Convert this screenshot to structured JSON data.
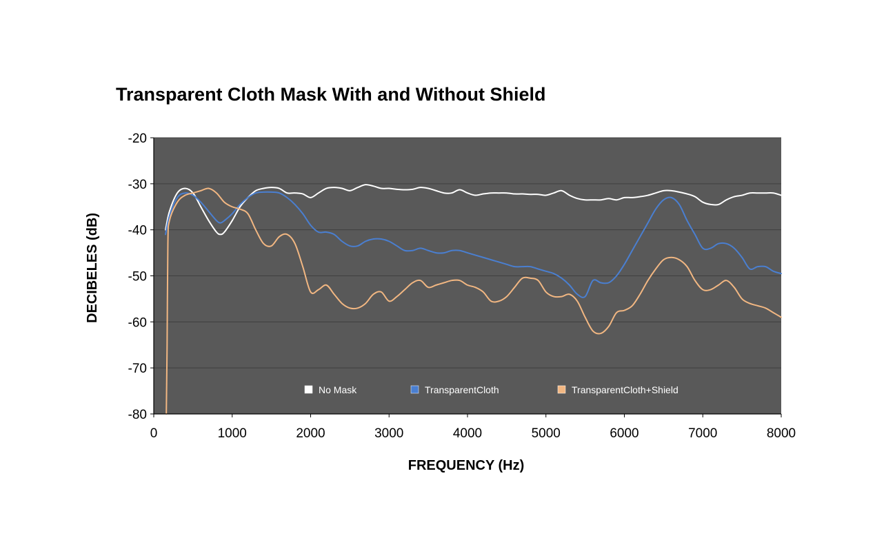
{
  "chart_data": {
    "type": "line",
    "title": "Transparent Cloth Mask With and Without Shield",
    "xlabel": "FREQUENCY (Hz)",
    "ylabel": "DECIBELES (dB)",
    "xlim": [
      0,
      8000
    ],
    "ylim": [
      -80,
      -20
    ],
    "xticks": [
      0,
      1000,
      2000,
      3000,
      4000,
      5000,
      6000,
      7000,
      8000
    ],
    "yticks": [
      -20,
      -30,
      -40,
      -50,
      -60,
      -70,
      -80
    ],
    "grid": true,
    "legend_position": "bottom-inside",
    "plot_background": "#595959",
    "series": [
      {
        "name": "No Mask",
        "color": "#ffffff",
        "x": [
          150,
          200,
          300,
          400,
          500,
          600,
          700,
          800,
          850,
          900,
          1000,
          1100,
          1200,
          1300,
          1400,
          1500,
          1600,
          1700,
          1800,
          1900,
          2000,
          2100,
          2200,
          2300,
          2400,
          2500,
          2600,
          2700,
          2800,
          2900,
          3000,
          3100,
          3200,
          3300,
          3400,
          3500,
          3600,
          3700,
          3800,
          3900,
          4000,
          4100,
          4200,
          4300,
          4400,
          4500,
          4600,
          4700,
          4800,
          4900,
          5000,
          5100,
          5200,
          5300,
          5400,
          5500,
          5600,
          5700,
          5800,
          5900,
          6000,
          6100,
          6200,
          6300,
          6400,
          6500,
          6600,
          6700,
          6800,
          6900,
          7000,
          7100,
          7200,
          7300,
          7400,
          7500,
          7600,
          7700,
          7800,
          7900,
          8000
        ],
        "values": [
          -40,
          -36,
          -32,
          -31,
          -32,
          -35,
          -38,
          -40.5,
          -41,
          -40.5,
          -38,
          -35,
          -33,
          -31.5,
          -31,
          -30.8,
          -31,
          -32,
          -32,
          -32.2,
          -33,
          -32,
          -31,
          -30.8,
          -31,
          -31.5,
          -30.8,
          -30.2,
          -30.5,
          -31,
          -31,
          -31.2,
          -31.3,
          -31.2,
          -30.8,
          -31,
          -31.5,
          -32,
          -32,
          -31.3,
          -32,
          -32.5,
          -32.2,
          -32,
          -32,
          -32,
          -32.2,
          -32.2,
          -32.3,
          -32.3,
          -32.5,
          -32,
          -31.5,
          -32.5,
          -33.2,
          -33.5,
          -33.5,
          -33.5,
          -33.2,
          -33.5,
          -33,
          -33,
          -32.8,
          -32.5,
          -32,
          -31.5,
          -31.5,
          -31.8,
          -32.2,
          -32.8,
          -34,
          -34.5,
          -34.5,
          -33.5,
          -32.8,
          -32.5,
          -32,
          -32,
          -32,
          -32,
          -32.5
        ]
      },
      {
        "name": "TransparentCloth",
        "color": "#4a7fd1",
        "x": [
          150,
          200,
          300,
          400,
          500,
          600,
          700,
          800,
          850,
          900,
          1000,
          1100,
          1200,
          1300,
          1400,
          1500,
          1600,
          1700,
          1800,
          1900,
          2000,
          2100,
          2200,
          2300,
          2400,
          2500,
          2600,
          2700,
          2800,
          2900,
          3000,
          3100,
          3200,
          3300,
          3400,
          3500,
          3600,
          3700,
          3800,
          3900,
          4000,
          4100,
          4200,
          4300,
          4400,
          4500,
          4600,
          4700,
          4800,
          4900,
          5000,
          5100,
          5200,
          5300,
          5400,
          5500,
          5600,
          5700,
          5800,
          5900,
          6000,
          6100,
          6200,
          6300,
          6400,
          6500,
          6600,
          6700,
          6800,
          6900,
          7000,
          7100,
          7200,
          7300,
          7400,
          7500,
          7600,
          7700,
          7800,
          7900,
          8000
        ],
        "values": [
          -41,
          -37,
          -33,
          -32,
          -32.5,
          -34,
          -36,
          -38,
          -38.5,
          -38,
          -36.5,
          -34.5,
          -33,
          -32,
          -31.8,
          -31.8,
          -32,
          -33,
          -34.5,
          -36.5,
          -39,
          -40.5,
          -40.5,
          -41,
          -42.5,
          -43.5,
          -43.5,
          -42.5,
          -42,
          -42,
          -42.5,
          -43.5,
          -44.5,
          -44.5,
          -44,
          -44.5,
          -45,
          -45,
          -44.5,
          -44.5,
          -45,
          -45.5,
          -46,
          -46.5,
          -47,
          -47.5,
          -48,
          -48,
          -48,
          -48.5,
          -49,
          -49.5,
          -50.5,
          -52,
          -54,
          -54.5,
          -51,
          -51.5,
          -51.5,
          -50,
          -47.5,
          -44.5,
          -41.5,
          -38.5,
          -35.5,
          -33.5,
          -33,
          -34.5,
          -38,
          -41,
          -44,
          -44,
          -43,
          -43,
          -44,
          -46,
          -48.5,
          -48,
          -48,
          -49,
          -49.5
        ]
      },
      {
        "name": "TransparentCloth+Shield",
        "color": "#f2b782",
        "x": [
          160,
          170,
          180,
          200,
          300,
          400,
          500,
          600,
          700,
          800,
          900,
          1000,
          1100,
          1200,
          1300,
          1400,
          1500,
          1600,
          1700,
          1800,
          1900,
          2000,
          2100,
          2200,
          2300,
          2400,
          2500,
          2600,
          2700,
          2800,
          2900,
          3000,
          3100,
          3200,
          3300,
          3400,
          3500,
          3600,
          3700,
          3800,
          3900,
          4000,
          4100,
          4200,
          4300,
          4400,
          4500,
          4600,
          4700,
          4800,
          4900,
          5000,
          5100,
          5200,
          5300,
          5400,
          5500,
          5600,
          5700,
          5800,
          5900,
          6000,
          6100,
          6200,
          6300,
          6400,
          6500,
          6600,
          6700,
          6800,
          6900,
          7000,
          7100,
          7200,
          7300,
          7400,
          7500,
          7600,
          7700,
          7800,
          7900,
          8000
        ],
        "values": [
          -80,
          -65,
          -43,
          -38,
          -34,
          -32.5,
          -32,
          -31.5,
          -31,
          -32,
          -34,
          -35,
          -35.5,
          -36.5,
          -40,
          -43,
          -43.5,
          -41.5,
          -41,
          -43,
          -48,
          -53.5,
          -53,
          -52,
          -54,
          -56,
          -57,
          -57,
          -56,
          -54,
          -53.5,
          -55.5,
          -54.5,
          -53,
          -51.5,
          -51,
          -52.5,
          -52,
          -51.5,
          -51,
          -51,
          -52,
          -52.5,
          -53.5,
          -55.5,
          -55.5,
          -54.5,
          -52.5,
          -50.5,
          -50.5,
          -51,
          -53.5,
          -54.5,
          -54.5,
          -54,
          -55.5,
          -59,
          -62,
          -62.5,
          -61,
          -58,
          -57.5,
          -56.5,
          -54,
          -51,
          -48.5,
          -46.5,
          -46,
          -46.5,
          -48,
          -51,
          -53,
          -53,
          -52,
          -51,
          -52.5,
          -55,
          -56,
          -56.5,
          -57,
          -58,
          -59
        ]
      }
    ]
  }
}
